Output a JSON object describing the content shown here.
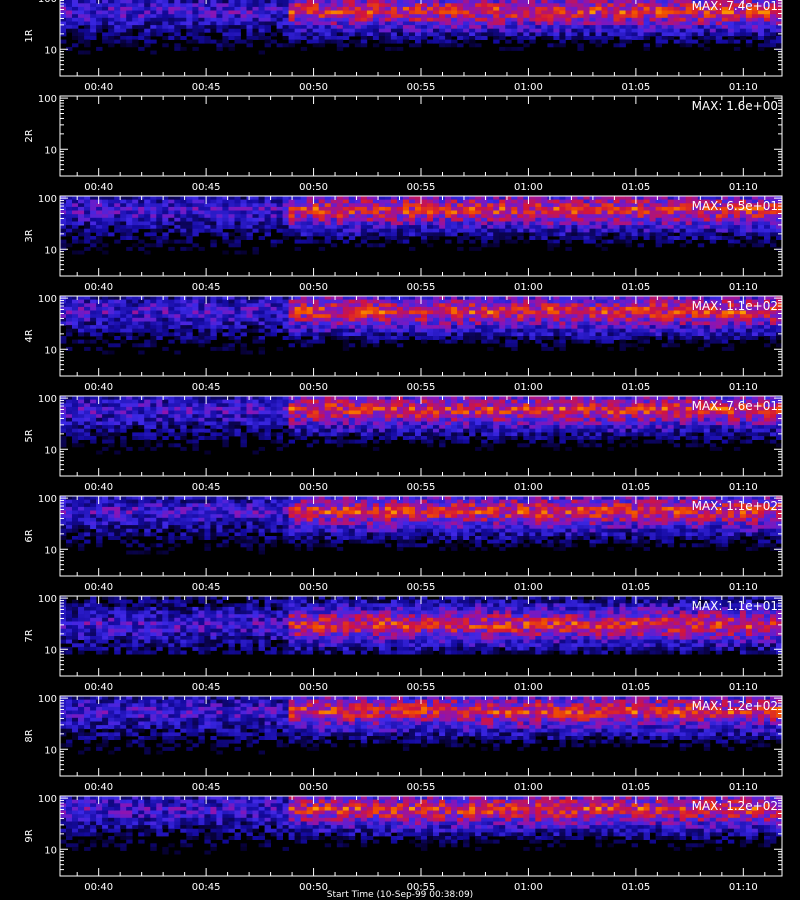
{
  "chart_data": {
    "type": "heatmap",
    "colormap": "black-blue-purple-red-yellow",
    "x_ticks": [
      "00:40",
      "00:45",
      "00:50",
      "00:55",
      "01:00",
      "01:05",
      "01:10"
    ],
    "x_tick_minutes": [
      40,
      45,
      50,
      55,
      60,
      65,
      70
    ],
    "x_range_minutes": [
      38.2,
      71.8
    ],
    "transition_minute": 48.9,
    "y_scale": "log",
    "y_ticks": [
      100,
      10
    ],
    "y_tick_labels": [
      "100",
      "10"
    ],
    "y_range": [
      3,
      110
    ],
    "panels": [
      {
        "name": "1R",
        "max_label": "MAX: 7.4e+01",
        "active": true,
        "dense_band": 55
      },
      {
        "name": "2R",
        "max_label": "MAX: 1.6e+00",
        "active": false,
        "dense_band": 55
      },
      {
        "name": "3R",
        "max_label": "MAX: 6.5e+01",
        "active": true,
        "dense_band": 58
      },
      {
        "name": "4R",
        "max_label": "MAX: 1.1e+02",
        "active": true,
        "dense_band": 55
      },
      {
        "name": "5R",
        "max_label": "MAX: 7.6e+01",
        "active": true,
        "dense_band": 60
      },
      {
        "name": "6R",
        "max_label": "MAX: 1.1e+02",
        "active": true,
        "dense_band": 55
      },
      {
        "name": "7R",
        "max_label": "MAX: 1.1e+01",
        "active": true,
        "dense_band": 30
      },
      {
        "name": "8R",
        "max_label": "MAX: 1.2e+02",
        "active": true,
        "dense_band": 55
      },
      {
        "name": "9R",
        "max_label": "MAX: 1.2e+02",
        "active": true,
        "dense_band": 60
      }
    ],
    "xlabel": "Start Time (10-Sep-99 00:38:09)"
  }
}
